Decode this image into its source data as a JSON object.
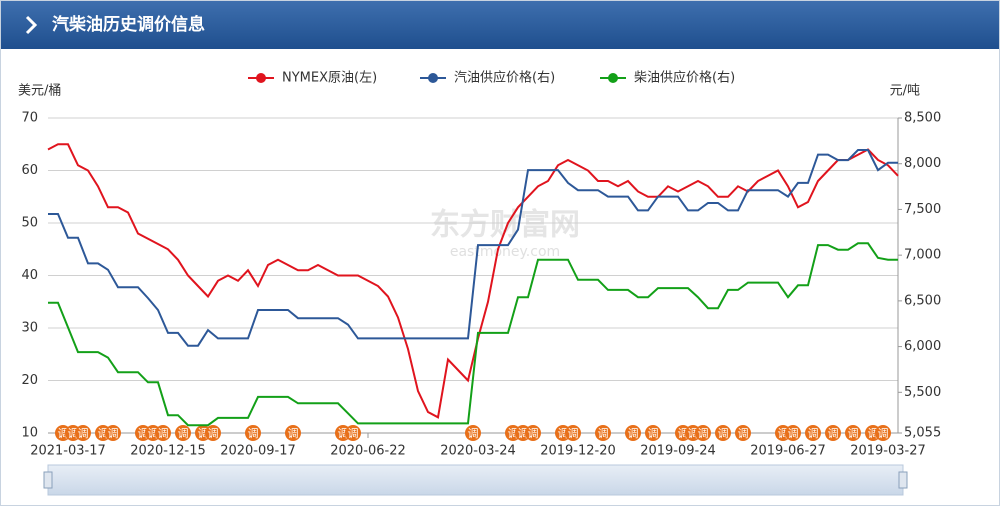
{
  "chart_data": {
    "type": "line",
    "title": "汽柴油历史调价信息",
    "y_label": "美元/桶",
    "y2_label": "元/吨",
    "watermark": "东方财富网",
    "watermark_sub": "eastmoney.com",
    "adjust_label": "调",
    "legend": "top",
    "grid": true,
    "categories": [
      null,
      null,
      "2021-03-17",
      null,
      null,
      null,
      null,
      null,
      null,
      null,
      null,
      null,
      "2020-12-15",
      null,
      null,
      null,
      null,
      null,
      null,
      null,
      null,
      "2020-09-17",
      null,
      null,
      null,
      null,
      null,
      null,
      null,
      null,
      null,
      null,
      "2020-06-22",
      null,
      null,
      null,
      null,
      null,
      null,
      null,
      null,
      null,
      null,
      "2020-03-24",
      null,
      null,
      null,
      null,
      null,
      null,
      null,
      null,
      null,
      "2019-12-20",
      null,
      null,
      null,
      null,
      null,
      null,
      null,
      null,
      null,
      "2019-09-24",
      null,
      null,
      null,
      null,
      null,
      null,
      null,
      null,
      null,
      null,
      "2019-06-27",
      null,
      null,
      null,
      null,
      null,
      null,
      null,
      null,
      null,
      "2019-03-27",
      null
    ],
    "ylim": [
      10,
      70
    ],
    "yticks": [
      10,
      20,
      30,
      40,
      50,
      60,
      70
    ],
    "y2lim": [
      5055,
      8500
    ],
    "y2ticks": [
      {
        "value": 5055,
        "label": "5,055"
      },
      {
        "value": 5500,
        "label": "5,500"
      },
      {
        "value": 6000,
        "label": "6,000"
      },
      {
        "value": 6500,
        "label": "6,500"
      },
      {
        "value": 7000,
        "label": "7,000"
      },
      {
        "value": 7500,
        "label": "7,500"
      },
      {
        "value": 8000,
        "label": "8,000"
      },
      {
        "value": 8500,
        "label": "8,500"
      }
    ],
    "series": [
      {
        "name": "NYMEX原油(左)",
        "color": "#e0141e",
        "axis": "y",
        "values": [
          64,
          65,
          65,
          61,
          60,
          57,
          53,
          53,
          52,
          48,
          47,
          46,
          45,
          43,
          40,
          38,
          36,
          39,
          40,
          39,
          41,
          38,
          42,
          43,
          42,
          41,
          41,
          42,
          41,
          40,
          40,
          40,
          39,
          38,
          36,
          32,
          26,
          18,
          14,
          13,
          24,
          22,
          20,
          28,
          35,
          45,
          50,
          53,
          55,
          57,
          58,
          61,
          62,
          61,
          60,
          58,
          58,
          57,
          58,
          56,
          55,
          55,
          57,
          56,
          57,
          58,
          57,
          55,
          55,
          57,
          56,
          58,
          59,
          60,
          57,
          53,
          54,
          58,
          60,
          62,
          62,
          63,
          64,
          62,
          61,
          59
        ]
      },
      {
        "name": "汽油供应价格(右)",
        "color": "#2d5898",
        "axis": "y2",
        "values": [
          7450,
          7450,
          7190,
          7190,
          6910,
          6910,
          6840,
          6650,
          6650,
          6650,
          6530,
          6400,
          6150,
          6150,
          6010,
          6010,
          6180,
          6090,
          6090,
          6090,
          6090,
          6400,
          6400,
          6400,
          6400,
          6310,
          6310,
          6310,
          6310,
          6310,
          6240,
          6090,
          6090,
          6090,
          6090,
          6090,
          6090,
          6090,
          6090,
          6090,
          6090,
          6090,
          6090,
          7110,
          7110,
          7110,
          7110,
          7280,
          7930,
          7930,
          7930,
          7930,
          7790,
          7710,
          7710,
          7710,
          7640,
          7640,
          7640,
          7490,
          7490,
          7640,
          7640,
          7640,
          7490,
          7490,
          7570,
          7570,
          7490,
          7490,
          7710,
          7710,
          7710,
          7710,
          7640,
          7790,
          7790,
          8100,
          8100,
          8040,
          8040,
          8150,
          8150,
          7930,
          8010,
          8010
        ]
      },
      {
        "name": "柴油供应价格(右)",
        "color": "#13a018",
        "axis": "y2",
        "values": [
          6480,
          6480,
          6210,
          5940,
          5940,
          5940,
          5880,
          5720,
          5720,
          5720,
          5610,
          5610,
          5250,
          5250,
          5140,
          5140,
          5140,
          5220,
          5220,
          5220,
          5220,
          5450,
          5450,
          5450,
          5450,
          5380,
          5380,
          5380,
          5380,
          5380,
          5270,
          5160,
          5160,
          5160,
          5160,
          5160,
          5160,
          5160,
          5160,
          5160,
          5160,
          5160,
          5160,
          6150,
          6150,
          6150,
          6150,
          6540,
          6540,
          6950,
          6950,
          6950,
          6950,
          6730,
          6730,
          6730,
          6620,
          6620,
          6620,
          6540,
          6540,
          6640,
          6640,
          6640,
          6640,
          6540,
          6420,
          6420,
          6620,
          6620,
          6700,
          6700,
          6700,
          6700,
          6540,
          6670,
          6670,
          7110,
          7110,
          7060,
          7060,
          7130,
          7130,
          6970,
          6950,
          6950
        ]
      }
    ]
  }
}
